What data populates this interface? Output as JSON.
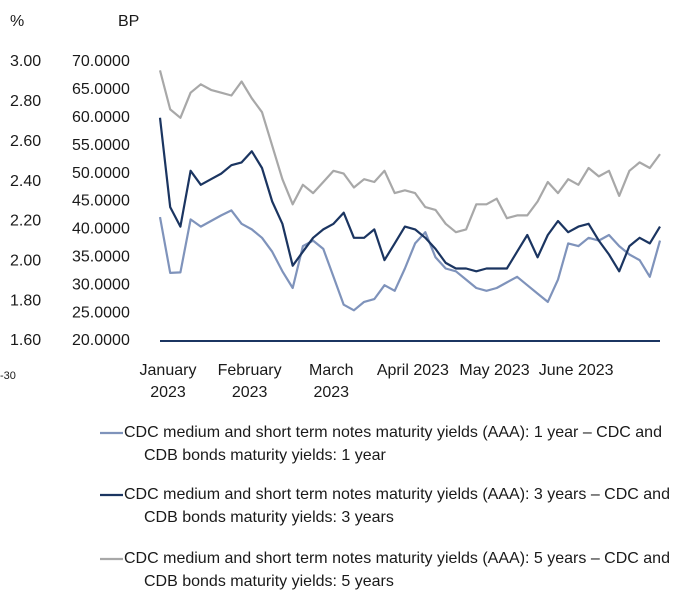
{
  "chart_data": {
    "type": "line",
    "y_axis_label": "BP",
    "y2_axis_label": "%",
    "annotation": "-30",
    "categories": [
      "January 2023",
      null,
      null,
      null,
      null,
      null,
      null,
      null,
      "February 2023",
      null,
      null,
      null,
      null,
      null,
      null,
      null,
      "March 2023",
      null,
      null,
      null,
      null,
      null,
      null,
      null,
      "April 2023",
      null,
      null,
      null,
      null,
      null,
      null,
      null,
      "May 2023",
      null,
      null,
      null,
      null,
      null,
      null,
      null,
      "June 2023",
      null,
      null,
      null,
      null,
      null,
      null,
      null,
      null,
      null
    ],
    "ylim": [
      20,
      70
    ],
    "yticks": [
      {
        "value": 20,
        "label": "20.0000"
      },
      {
        "value": 25,
        "label": "25.0000"
      },
      {
        "value": 30,
        "label": "30.0000"
      },
      {
        "value": 35,
        "label": "35.0000"
      },
      {
        "value": 40,
        "label": "40.0000"
      },
      {
        "value": 45,
        "label": "45.0000"
      },
      {
        "value": 50,
        "label": "50.0000"
      },
      {
        "value": 55,
        "label": "55.0000"
      },
      {
        "value": 60,
        "label": "60.0000"
      },
      {
        "value": 65,
        "label": "65.0000"
      },
      {
        "value": 70,
        "label": "70.0000"
      }
    ],
    "y2lim": [
      1.6,
      3.0
    ],
    "y2ticks": [
      {
        "value": 1.6,
        "label": "1.60"
      },
      {
        "value": 1.8,
        "label": "1.80"
      },
      {
        "value": 2.0,
        "label": "2.00"
      },
      {
        "value": 2.2,
        "label": "2.20"
      },
      {
        "value": 2.4,
        "label": "2.40"
      },
      {
        "value": 2.6,
        "label": "2.60"
      },
      {
        "value": 2.8,
        "label": "2.80"
      },
      {
        "value": 3.0,
        "label": "3.00"
      }
    ],
    "axis_color": "#1b3561",
    "series": [
      {
        "name": "CDC medium and short term notes maturity yields (AAA): 1 year – CDC and CDB bonds maturity yields: 1 year",
        "color": "#7f93bb",
        "values": [
          42.2,
          32.2,
          32.3,
          41.8,
          40.5,
          41.5,
          42.5,
          43.4,
          41.0,
          40.0,
          38.5,
          36.0,
          32.5,
          29.5,
          37.0,
          38.0,
          36.5,
          31.5,
          26.5,
          25.5,
          27.0,
          27.5,
          30.0,
          29.0,
          33.0,
          37.5,
          39.5,
          35.0,
          33.0,
          32.5,
          31.0,
          29.5,
          29.0,
          29.5,
          30.5,
          31.5,
          30.0,
          28.5,
          27.0,
          31.0,
          37.5,
          37.0,
          38.5,
          38.0,
          39.0,
          37.0,
          35.5,
          34.5,
          31.5,
          38.0
        ]
      },
      {
        "name": "CDC medium and short term notes maturity yields (AAA): 3 years – CDC and CDB bonds maturity yields: 3 years",
        "color": "#1b3561",
        "values": [
          60.0,
          44.0,
          40.5,
          50.5,
          48.0,
          49.0,
          50.0,
          51.5,
          52.0,
          54.0,
          51.0,
          45.0,
          41.0,
          33.5,
          36.0,
          38.5,
          40.0,
          41.0,
          43.0,
          38.5,
          38.5,
          40.0,
          34.5,
          37.5,
          40.5,
          40.0,
          38.5,
          36.5,
          34.0,
          33.0,
          33.0,
          32.5,
          33.0,
          33.0,
          33.0,
          36.0,
          39.0,
          35.0,
          39.0,
          41.5,
          39.5,
          40.5,
          41.0,
          38.0,
          35.5,
          32.5,
          37.0,
          38.5,
          37.5,
          40.5
        ]
      },
      {
        "name": "CDC medium and short term notes maturity yields (AAA): 5 years – CDC and CDB bonds maturity yields: 5 years",
        "color": "#a8a8a8",
        "values": [
          68.5,
          61.5,
          60.0,
          64.5,
          66.0,
          65.0,
          64.5,
          64.0,
          66.5,
          63.5,
          61.0,
          55.0,
          49.0,
          44.5,
          48.0,
          46.5,
          48.5,
          50.5,
          50.0,
          47.5,
          49.0,
          48.5,
          50.5,
          46.5,
          47.0,
          46.5,
          44.0,
          43.5,
          41.0,
          39.5,
          40.0,
          44.5,
          44.5,
          45.5,
          42.0,
          42.5,
          42.5,
          45.0,
          48.5,
          46.5,
          49.0,
          48.0,
          51.0,
          49.5,
          50.5,
          46.0,
          50.5,
          52.0,
          51.0,
          53.5
        ]
      }
    ]
  }
}
